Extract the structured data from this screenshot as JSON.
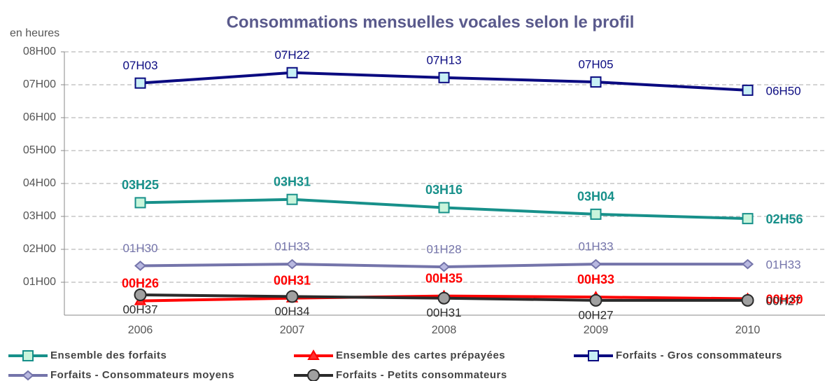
{
  "chart_data": {
    "type": "line",
    "title": "Consommations mensuelles vocales selon le profil",
    "y_label": "en heures",
    "categories": [
      "2006",
      "2007",
      "2008",
      "2009",
      "2010"
    ],
    "ylim": [
      0,
      8
    ],
    "yticks": [
      {
        "value": 1,
        "label": "01H00"
      },
      {
        "value": 2,
        "label": "02H00"
      },
      {
        "value": 3,
        "label": "03H00"
      },
      {
        "value": 4,
        "label": "04H00"
      },
      {
        "value": 5,
        "label": "05H00"
      },
      {
        "value": 6,
        "label": "06H00"
      },
      {
        "value": 7,
        "label": "07H00"
      },
      {
        "value": 8,
        "label": "08H00"
      }
    ],
    "grid": true,
    "legend": "bottom",
    "series": [
      {
        "name": "Ensemble des forfaits",
        "color": "#17908a",
        "marker": "square",
        "marker_fill": "#c9f5dc",
        "values": [
          3.4167,
          3.5167,
          3.2667,
          3.0667,
          2.9333
        ],
        "value_labels": [
          "03H25",
          "03H31",
          "03H16",
          "03H04",
          "02H56"
        ]
      },
      {
        "name": "Ensemble des cartes prépayées",
        "color": "#ff0000",
        "marker": "triangle",
        "marker_fill": "#ff3030",
        "values": [
          0.4333,
          0.5167,
          0.5833,
          0.55,
          0.5
        ],
        "value_labels": [
          "00H26",
          "00H31",
          "00H35",
          "00H33",
          "00H30"
        ]
      },
      {
        "name": "Forfaits - Gros consommateurs",
        "color": "#0a0a80",
        "marker": "square",
        "marker_fill": "#c8f0f5",
        "values": [
          7.05,
          7.3667,
          7.2167,
          7.0833,
          6.8333
        ],
        "value_labels": [
          "07H03",
          "07H22",
          "07H13",
          "07H05",
          "06H50"
        ]
      },
      {
        "name": "Forfaits - Consommateurs moyens",
        "color": "#7474aa",
        "marker": "diamond",
        "marker_fill": "#b8b8e0",
        "values": [
          1.5,
          1.55,
          1.4667,
          1.55,
          1.55
        ],
        "value_labels": [
          "01H30",
          "01H33",
          "01H28",
          "01H33",
          "01H33"
        ]
      },
      {
        "name": "Forfaits - Petits consommateurs",
        "color": "#2a2a2a",
        "marker": "circle",
        "marker_fill": "#a0a0a0",
        "values": [
          0.6167,
          0.5667,
          0.5167,
          0.45,
          0.45
        ],
        "value_labels": [
          "00H37",
          "00H34",
          "00H31",
          "00H27",
          "00H27"
        ]
      }
    ]
  }
}
